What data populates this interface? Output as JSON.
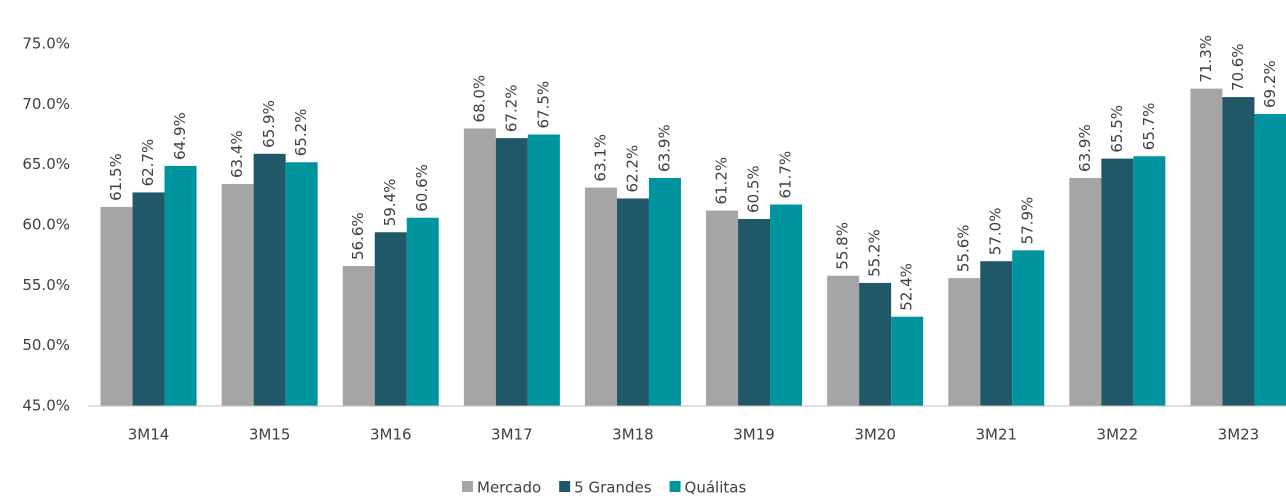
{
  "chart_data": {
    "type": "bar",
    "categories": [
      "3M14",
      "3M15",
      "3M16",
      "3M17",
      "3M18",
      "3M19",
      "3M20",
      "3M21",
      "3M22",
      "3M23"
    ],
    "series": [
      {
        "name": "Mercado",
        "color": "#a5a5a5",
        "values": [
          61.5,
          63.4,
          56.6,
          68.0,
          63.1,
          61.2,
          55.8,
          55.6,
          63.9,
          71.3
        ],
        "value_labels": [
          "61.5%",
          "63.4%",
          "56.6%",
          "68.0%",
          "63.1%",
          "61.2%",
          "55.8%",
          "55.6%",
          "63.9%",
          "71.3%"
        ]
      },
      {
        "name": "5 Grandes",
        "color": "#215867",
        "values": [
          62.7,
          65.9,
          59.4,
          67.2,
          62.2,
          60.5,
          55.2,
          57.0,
          65.5,
          70.6
        ],
        "value_labels": [
          "62.7%",
          "65.9%",
          "59.4%",
          "67.2%",
          "62.2%",
          "60.5%",
          "55.2%",
          "57.0%",
          "65.5%",
          "70.6%"
        ]
      },
      {
        "name": "Quálitas",
        "color": "#00959e",
        "values": [
          64.9,
          65.2,
          60.6,
          67.5,
          63.9,
          61.7,
          52.4,
          57.9,
          65.7,
          69.2
        ],
        "value_labels": [
          "64.9%",
          "65.2%",
          "60.6%",
          "67.5%",
          "63.9%",
          "61.7%",
          "52.4%",
          "57.9%",
          "65.7%",
          "69.2%"
        ]
      }
    ],
    "ylim": [
      45,
      75
    ],
    "yticks": [
      {
        "value": 45,
        "label": "45.0%"
      },
      {
        "value": 50,
        "label": "50.0%"
      },
      {
        "value": 55,
        "label": "55.0%"
      },
      {
        "value": 60,
        "label": "60.0%"
      },
      {
        "value": 65,
        "label": "65.0%"
      },
      {
        "value": 70,
        "label": "70.0%"
      },
      {
        "value": 75,
        "label": "75.0%"
      }
    ],
    "grid": false,
    "legend": "bottom"
  }
}
